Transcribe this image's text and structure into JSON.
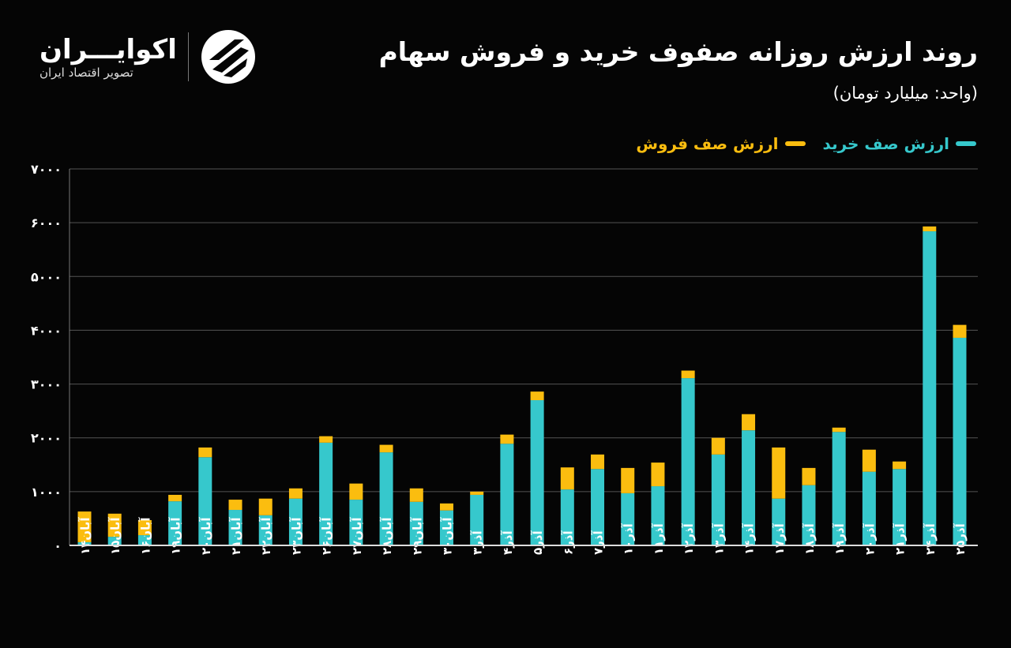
{
  "header": {
    "title": "روند ارزش روزانه صفوف خرید و فروش سهام",
    "unit": "(واحد: میلیارد تومان)"
  },
  "logo": {
    "name": "اکوایـــران",
    "tagline": "تصویر اقتصاد ایران"
  },
  "chart_data": {
    "type": "bar",
    "stacked": true,
    "ylim": [
      0,
      7000
    ],
    "yticks": [
      "۰",
      "۱۰۰۰",
      "۲۰۰۰",
      "۳۰۰۰",
      "۴۰۰۰",
      "۵۰۰۰",
      "۶۰۰۰",
      "۷۰۰۰"
    ],
    "grid": true,
    "legend_position": "top-right",
    "categories": [
      "آبان۱۴",
      "آبان۱۵",
      "آبان۱۶",
      "آبان۱۹",
      "آبان۲۰",
      "آبان۲۱",
      "آبان۲۲",
      "آبان۲۳",
      "آبان۲۶",
      "آبان۲۷",
      "آبان۲۸",
      "آبان۲۹",
      "آبان۳۰",
      "آذر۳",
      "آذر۴",
      "آذر۵",
      "آذر۶",
      "آذر۷",
      "آذر۱۰",
      "آذر۱۱",
      "آذر۱۲",
      "آذر۱۳",
      "آذر۱۴",
      "آذر۱۷",
      "آذر۱۸",
      "آذر۱۹",
      "آذر۲۰",
      "آذر۲۱",
      "آذر۲۴",
      "آذر۲۵"
    ],
    "series": [
      {
        "name": "ارزش صف خرید",
        "color": "#36c8cc",
        "values": [
          60,
          160,
          190,
          820,
          1640,
          660,
          560,
          870,
          1910,
          850,
          1730,
          810,
          650,
          940,
          1890,
          2700,
          1040,
          1420,
          970,
          1100,
          3110,
          1690,
          2140,
          870,
          1120,
          2110,
          1370,
          1420,
          5840,
          3860
        ]
      },
      {
        "name": "ارزش صف فروش",
        "color": "#fbbd0f",
        "values": [
          570,
          430,
          280,
          120,
          180,
          190,
          310,
          190,
          120,
          300,
          140,
          250,
          130,
          60,
          170,
          160,
          410,
          270,
          470,
          440,
          140,
          310,
          300,
          950,
          320,
          80,
          410,
          140,
          90,
          240
        ]
      }
    ]
  }
}
